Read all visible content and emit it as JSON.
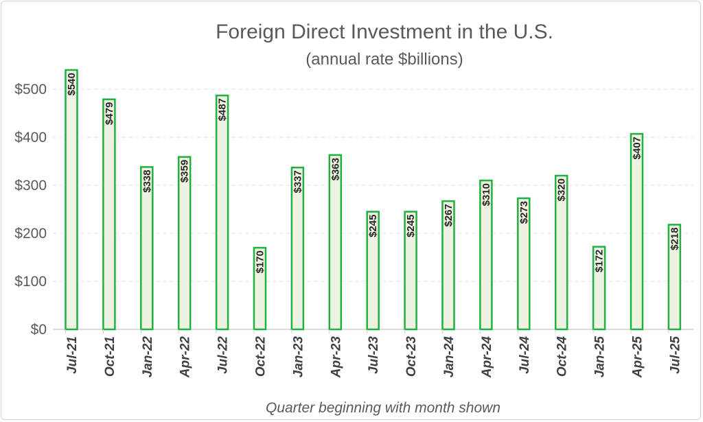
{
  "chart_data": {
    "type": "bar",
    "title": "Foreign Direct Investment in the U.S.",
    "subtitle": "(annual rate $billions)",
    "xlabel": "Quarter beginning with month shown",
    "ylabel": "",
    "ylim": [
      0,
      500
    ],
    "yticks": [
      0,
      100,
      200,
      300,
      400,
      500
    ],
    "ytick_labels": [
      "$0",
      "$100",
      "$200",
      "$300",
      "$400",
      "$500"
    ],
    "grid": true,
    "categories": [
      "Jul-21",
      "Oct-21",
      "Jan-22",
      "Apr-22",
      "Jul-22",
      "Oct-22",
      "Jan-23",
      "Apr-23",
      "Jul-23",
      "Oct-23",
      "Jan-24",
      "Apr-24",
      "Jul-24",
      "Oct-24",
      "Jan-25",
      "Apr-25",
      "Jul-25"
    ],
    "values": [
      540,
      479,
      338,
      359,
      487,
      170,
      337,
      363,
      245,
      245,
      267,
      310,
      273,
      320,
      172,
      407,
      218
    ],
    "data_labels": [
      "$540",
      "$479",
      "$338",
      "$359",
      "$487",
      "$170",
      "$337",
      "$363",
      "$245",
      "$245",
      "$267",
      "$310",
      "$273",
      "$320",
      "$172",
      "$407",
      "$218"
    ],
    "colors": {
      "bar_fill": "#eef2e0",
      "bar_stroke": "#1fb141",
      "grid": "#e3e3e3",
      "axis": "#d0d0d0"
    }
  }
}
